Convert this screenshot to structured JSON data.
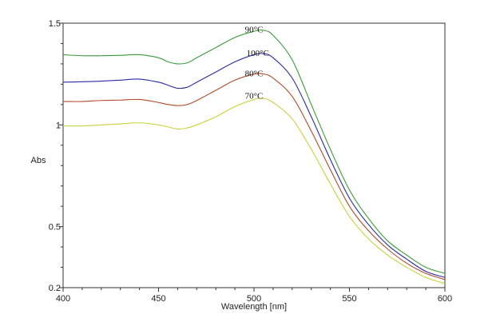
{
  "chart_data": {
    "type": "line",
    "xlabel": "Wavelength [nm]",
    "ylabel": "Abs",
    "xlim": [
      400,
      600
    ],
    "ylim": [
      0.2,
      1.5
    ],
    "x_ticks": [
      400,
      450,
      500,
      550,
      600
    ],
    "y_ticks": [
      0.2,
      0.5,
      1,
      1.5
    ],
    "y_tick_labels": [
      "0.2",
      "0.5",
      "1",
      "1.5"
    ],
    "grid": false,
    "legend": "none",
    "series": [
      {
        "name": "90°C",
        "color": "#3a9a3a",
        "label_at": [
          500,
          1.47
        ],
        "points": [
          [
            400,
            1.345
          ],
          [
            410,
            1.34
          ],
          [
            420,
            1.34
          ],
          [
            430,
            1.342
          ],
          [
            440,
            1.345
          ],
          [
            450,
            1.33
          ],
          [
            455,
            1.31
          ],
          [
            460,
            1.3
          ],
          [
            465,
            1.305
          ],
          [
            470,
            1.33
          ],
          [
            480,
            1.38
          ],
          [
            490,
            1.43
          ],
          [
            500,
            1.46
          ],
          [
            505,
            1.465
          ],
          [
            510,
            1.44
          ],
          [
            520,
            1.32
          ],
          [
            530,
            1.1
          ],
          [
            540,
            0.88
          ],
          [
            550,
            0.68
          ],
          [
            560,
            0.54
          ],
          [
            570,
            0.43
          ],
          [
            580,
            0.36
          ],
          [
            590,
            0.3
          ],
          [
            600,
            0.27
          ]
        ]
      },
      {
        "name": "100°C",
        "color": "#2a2aa8",
        "label_at": [
          502,
          1.355
        ],
        "points": [
          [
            400,
            1.21
          ],
          [
            410,
            1.212
          ],
          [
            420,
            1.215
          ],
          [
            430,
            1.22
          ],
          [
            440,
            1.225
          ],
          [
            450,
            1.21
          ],
          [
            455,
            1.195
          ],
          [
            460,
            1.18
          ],
          [
            465,
            1.185
          ],
          [
            470,
            1.21
          ],
          [
            480,
            1.26
          ],
          [
            490,
            1.31
          ],
          [
            500,
            1.345
          ],
          [
            505,
            1.35
          ],
          [
            510,
            1.33
          ],
          [
            520,
            1.23
          ],
          [
            530,
            1.04
          ],
          [
            540,
            0.83
          ],
          [
            550,
            0.64
          ],
          [
            560,
            0.51
          ],
          [
            570,
            0.41
          ],
          [
            580,
            0.34
          ],
          [
            590,
            0.28
          ],
          [
            600,
            0.25
          ]
        ]
      },
      {
        "name": "80°C",
        "color": "#b04a2a",
        "label_at": [
          500,
          1.255
        ],
        "points": [
          [
            400,
            1.115
          ],
          [
            410,
            1.115
          ],
          [
            420,
            1.12
          ],
          [
            430,
            1.122
          ],
          [
            440,
            1.125
          ],
          [
            450,
            1.11
          ],
          [
            455,
            1.1
          ],
          [
            460,
            1.095
          ],
          [
            465,
            1.1
          ],
          [
            470,
            1.12
          ],
          [
            480,
            1.17
          ],
          [
            490,
            1.22
          ],
          [
            500,
            1.25
          ],
          [
            505,
            1.25
          ],
          [
            510,
            1.23
          ],
          [
            520,
            1.14
          ],
          [
            530,
            0.97
          ],
          [
            540,
            0.78
          ],
          [
            550,
            0.6
          ],
          [
            560,
            0.48
          ],
          [
            570,
            0.39
          ],
          [
            580,
            0.32
          ],
          [
            590,
            0.27
          ],
          [
            600,
            0.24
          ]
        ]
      },
      {
        "name": "70°C",
        "color": "#c8d23a",
        "label_at": [
          500,
          1.145
        ],
        "points": [
          [
            400,
            0.995
          ],
          [
            410,
            0.995
          ],
          [
            420,
            1.0
          ],
          [
            430,
            1.005
          ],
          [
            440,
            1.01
          ],
          [
            450,
            1.0
          ],
          [
            455,
            0.99
          ],
          [
            460,
            0.98
          ],
          [
            465,
            0.985
          ],
          [
            470,
            1.0
          ],
          [
            480,
            1.04
          ],
          [
            490,
            1.09
          ],
          [
            500,
            1.125
          ],
          [
            505,
            1.13
          ],
          [
            510,
            1.11
          ],
          [
            520,
            1.03
          ],
          [
            530,
            0.88
          ],
          [
            540,
            0.71
          ],
          [
            550,
            0.55
          ],
          [
            560,
            0.44
          ],
          [
            570,
            0.36
          ],
          [
            580,
            0.3
          ],
          [
            590,
            0.25
          ],
          [
            600,
            0.22
          ]
        ]
      }
    ]
  }
}
